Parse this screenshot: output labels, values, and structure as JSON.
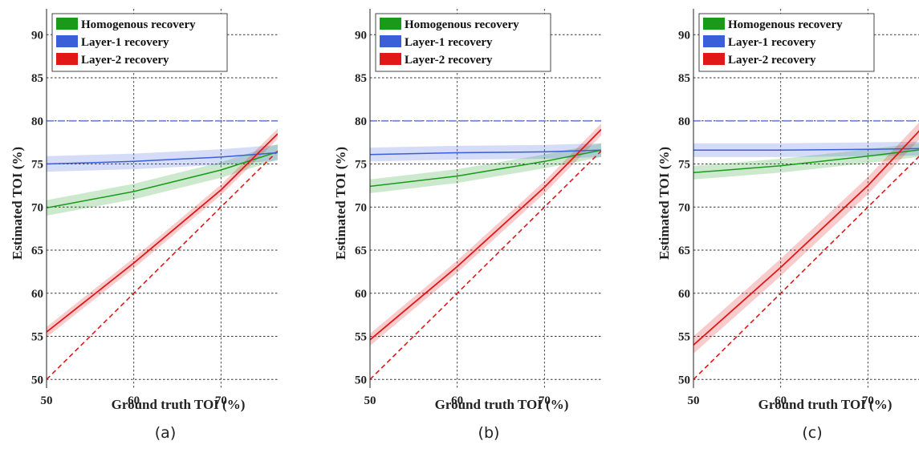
{
  "colors": {
    "homogenous": "#1a9a1a",
    "layer1": "#3a5fd9",
    "layer2": "#e01818",
    "reference_dashed": "#6a86d4",
    "identity_dashed": "#e01818"
  },
  "chart_data": [
    {
      "type": "line",
      "panel_label": "(a)",
      "xlabel": "Ground truth TOI (%)",
      "ylabel": "Estimated TOI (%)",
      "xlim": [
        50,
        76.5
      ],
      "ylim": [
        49,
        93
      ],
      "x_ticks": [
        50,
        60,
        70
      ],
      "y_ticks": [
        50,
        55,
        60,
        65,
        70,
        75,
        80,
        85,
        90
      ],
      "grid": true,
      "legend_position": "top-left",
      "reference_line": {
        "y": 80,
        "style": "dashed"
      },
      "identity_line": {
        "x": [
          50,
          76.5
        ],
        "y": [
          50,
          76.5
        ],
        "style": "dashed"
      },
      "series": [
        {
          "name": "Homogenous recovery",
          "x": [
            50,
            60,
            70,
            76.5
          ],
          "y": [
            69.9,
            71.8,
            74.3,
            76.4
          ],
          "band": 0.9
        },
        {
          "name": "Layer-1 recovery",
          "x": [
            50,
            60,
            70,
            76.5
          ],
          "y": [
            75.0,
            75.3,
            75.8,
            76.3
          ],
          "band": 0.9
        },
        {
          "name": "Layer-2 recovery",
          "x": [
            50,
            60,
            70,
            76.5
          ],
          "y": [
            55.5,
            63.5,
            72.0,
            78.5
          ],
          "band": 0.6
        }
      ]
    },
    {
      "type": "line",
      "panel_label": "(b)",
      "xlabel": "Ground truth TOI (%)",
      "ylabel": "Estimated TOI (%)",
      "xlim": [
        50,
        76.5
      ],
      "ylim": [
        49,
        93
      ],
      "x_ticks": [
        50,
        60,
        70
      ],
      "y_ticks": [
        50,
        55,
        60,
        65,
        70,
        75,
        80,
        85,
        90
      ],
      "grid": true,
      "legend_position": "top-left",
      "reference_line": {
        "y": 80,
        "style": "dashed"
      },
      "identity_line": {
        "x": [
          50,
          76.5
        ],
        "y": [
          50,
          76.5
        ],
        "style": "dashed"
      },
      "series": [
        {
          "name": "Homogenous recovery",
          "x": [
            50,
            60,
            70,
            76.5
          ],
          "y": [
            72.4,
            73.6,
            75.3,
            76.6
          ],
          "band": 0.8
        },
        {
          "name": "Layer-1 recovery",
          "x": [
            50,
            60,
            70,
            76.5
          ],
          "y": [
            76.1,
            76.3,
            76.4,
            76.6
          ],
          "band": 0.8
        },
        {
          "name": "Layer-2 recovery",
          "x": [
            50,
            60,
            70,
            76.5
          ],
          "y": [
            54.6,
            63.1,
            72.3,
            79.0
          ],
          "band": 0.7
        }
      ]
    },
    {
      "type": "line",
      "panel_label": "(c)",
      "xlabel": "Ground truth TOI (%)",
      "ylabel": "Estimated TOI (%)",
      "xlim": [
        50,
        76.5
      ],
      "ylim": [
        49,
        93
      ],
      "x_ticks": [
        50,
        60,
        70
      ],
      "y_ticks": [
        50,
        55,
        60,
        65,
        70,
        75,
        80,
        85,
        90
      ],
      "grid": true,
      "legend_position": "top-left",
      "reference_line": {
        "y": 80,
        "style": "dashed"
      },
      "identity_line": {
        "x": [
          50,
          76.5
        ],
        "y": [
          50,
          76.5
        ],
        "style": "dashed"
      },
      "series": [
        {
          "name": "Homogenous recovery",
          "x": [
            50,
            60,
            70,
            76.5
          ],
          "y": [
            74.0,
            74.8,
            75.9,
            76.7
          ],
          "band": 0.8
        },
        {
          "name": "Layer-1 recovery",
          "x": [
            50,
            60,
            70,
            76.5
          ],
          "y": [
            76.6,
            76.6,
            76.7,
            76.8
          ],
          "band": 0.8
        },
        {
          "name": "Layer-2 recovery",
          "x": [
            50,
            60,
            70,
            76.5
          ],
          "y": [
            54.0,
            63.0,
            72.5,
            79.5
          ],
          "band": 1.0
        }
      ]
    }
  ]
}
